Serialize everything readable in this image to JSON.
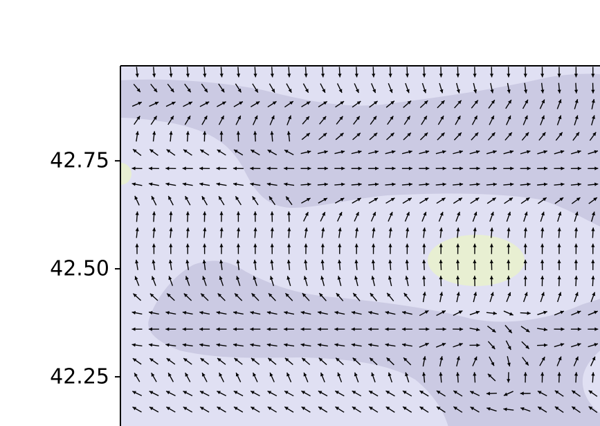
{
  "chart_data": {
    "type": "vector_field",
    "title": "",
    "xlabel": "",
    "ylabel": "",
    "grid": false,
    "y_ticks": [
      {
        "value": 42.75,
        "label": "42.75"
      },
      {
        "value": 42.5,
        "label": "42.50"
      },
      {
        "value": 42.25,
        "label": "42.25"
      }
    ],
    "ylim": [
      42.12,
      42.97
    ],
    "xlim": [
      0,
      1
    ],
    "colors": {
      "background": "#ffffff",
      "field_light": "#e0e0f3",
      "field_dark": "#cbcae3",
      "field_yellow": "#e8efd2",
      "arrow": "#000000",
      "axes": "#000000"
    },
    "filled_contour_levels": [
      {
        "level": "low",
        "color": "#cbcae3"
      },
      {
        "level": "mid",
        "color": "#e0e0f3"
      },
      {
        "level": "high",
        "color": "#e8efd2"
      }
    ],
    "arrow_grid": {
      "columns": 29,
      "rows": 22
    }
  }
}
